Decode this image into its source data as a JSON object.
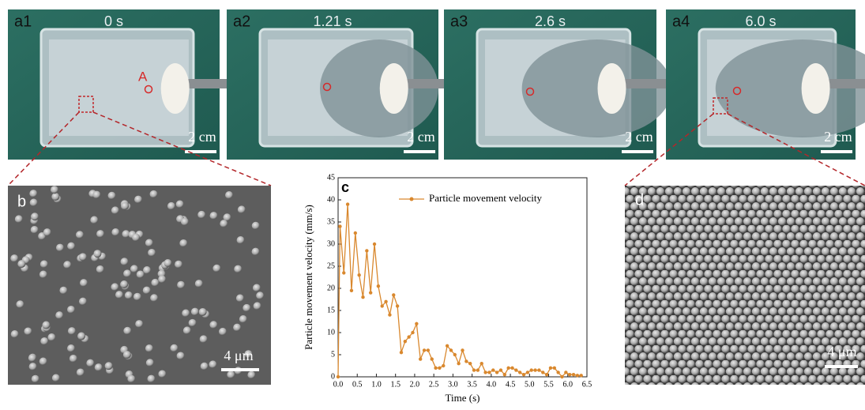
{
  "panels": [
    {
      "label": "a1",
      "time": "0 s",
      "scale": "2 cm",
      "annotation": "A"
    },
    {
      "label": "a2",
      "time": "1.21 s",
      "scale": "2 cm"
    },
    {
      "label": "a3",
      "time": "2.6 s",
      "scale": "2 cm"
    },
    {
      "label": "a4",
      "time": "6.0 s",
      "scale": "2 cm"
    }
  ],
  "sem": [
    {
      "label": "b",
      "scale": "4 μm"
    },
    {
      "label": "d",
      "scale": "4 μm"
    }
  ],
  "chart_data": {
    "type": "line",
    "panel_label": "c",
    "x_label": "Time (s)",
    "y_label": "Particle movement velocity (mm/s)",
    "x": [
      0.0,
      0.05,
      0.15,
      0.25,
      0.35,
      0.45,
      0.55,
      0.65,
      0.75,
      0.85,
      0.95,
      1.05,
      1.15,
      1.25,
      1.35,
      1.45,
      1.55,
      1.65,
      1.75,
      1.85,
      1.95,
      2.05,
      2.15,
      2.25,
      2.35,
      2.45,
      2.55,
      2.65,
      2.75,
      2.85,
      2.95,
      3.05,
      3.15,
      3.25,
      3.35,
      3.45,
      3.55,
      3.65,
      3.75,
      3.85,
      3.95,
      4.05,
      4.15,
      4.25,
      4.35,
      4.45,
      4.55,
      4.65,
      4.75,
      4.85,
      4.95,
      5.05,
      5.15,
      5.25,
      5.35,
      5.45,
      5.55,
      5.65,
      5.75,
      5.85,
      5.95,
      6.05,
      6.15,
      6.25,
      6.35
    ],
    "series": [
      {
        "name": "Particle movement velocity",
        "color": "#d9882e",
        "values": [
          0,
          34,
          23.5,
          39,
          19.5,
          32.5,
          23,
          18,
          28.5,
          19,
          30,
          20.5,
          16,
          17,
          14,
          18.5,
          16,
          5.5,
          8,
          9,
          10,
          12,
          4,
          6,
          6,
          4,
          2,
          2,
          2.5,
          7,
          6,
          5,
          3,
          6,
          3.5,
          3,
          1.5,
          1.5,
          3,
          1,
          1,
          1.5,
          1,
          1.5,
          0.5,
          2,
          2,
          1.5,
          1,
          0.5,
          1,
          1.5,
          1.5,
          1.5,
          1,
          0.5,
          2,
          2,
          1,
          0,
          1,
          0.5,
          0.5,
          0.3,
          0.3
        ]
      }
    ],
    "xlim": [
      0,
      6.5
    ],
    "ylim": [
      0,
      45
    ],
    "xticks": [
      {
        "value": 0,
        "label": "0.0"
      },
      0.5,
      {
        "value": 1,
        "label": "1.0"
      },
      1.5,
      {
        "value": 2,
        "label": "2.0"
      },
      2.5,
      {
        "value": 3,
        "label": "3.0"
      },
      3.5,
      {
        "value": 4,
        "label": "4.0"
      },
      4.5,
      {
        "value": 5,
        "label": "5.0"
      },
      5.5,
      {
        "value": 6,
        "label": "6.0"
      },
      6.5
    ],
    "yticks": [
      0,
      5,
      10,
      15,
      20,
      25,
      30,
      35,
      40,
      45
    ],
    "legend": "upper-right"
  }
}
